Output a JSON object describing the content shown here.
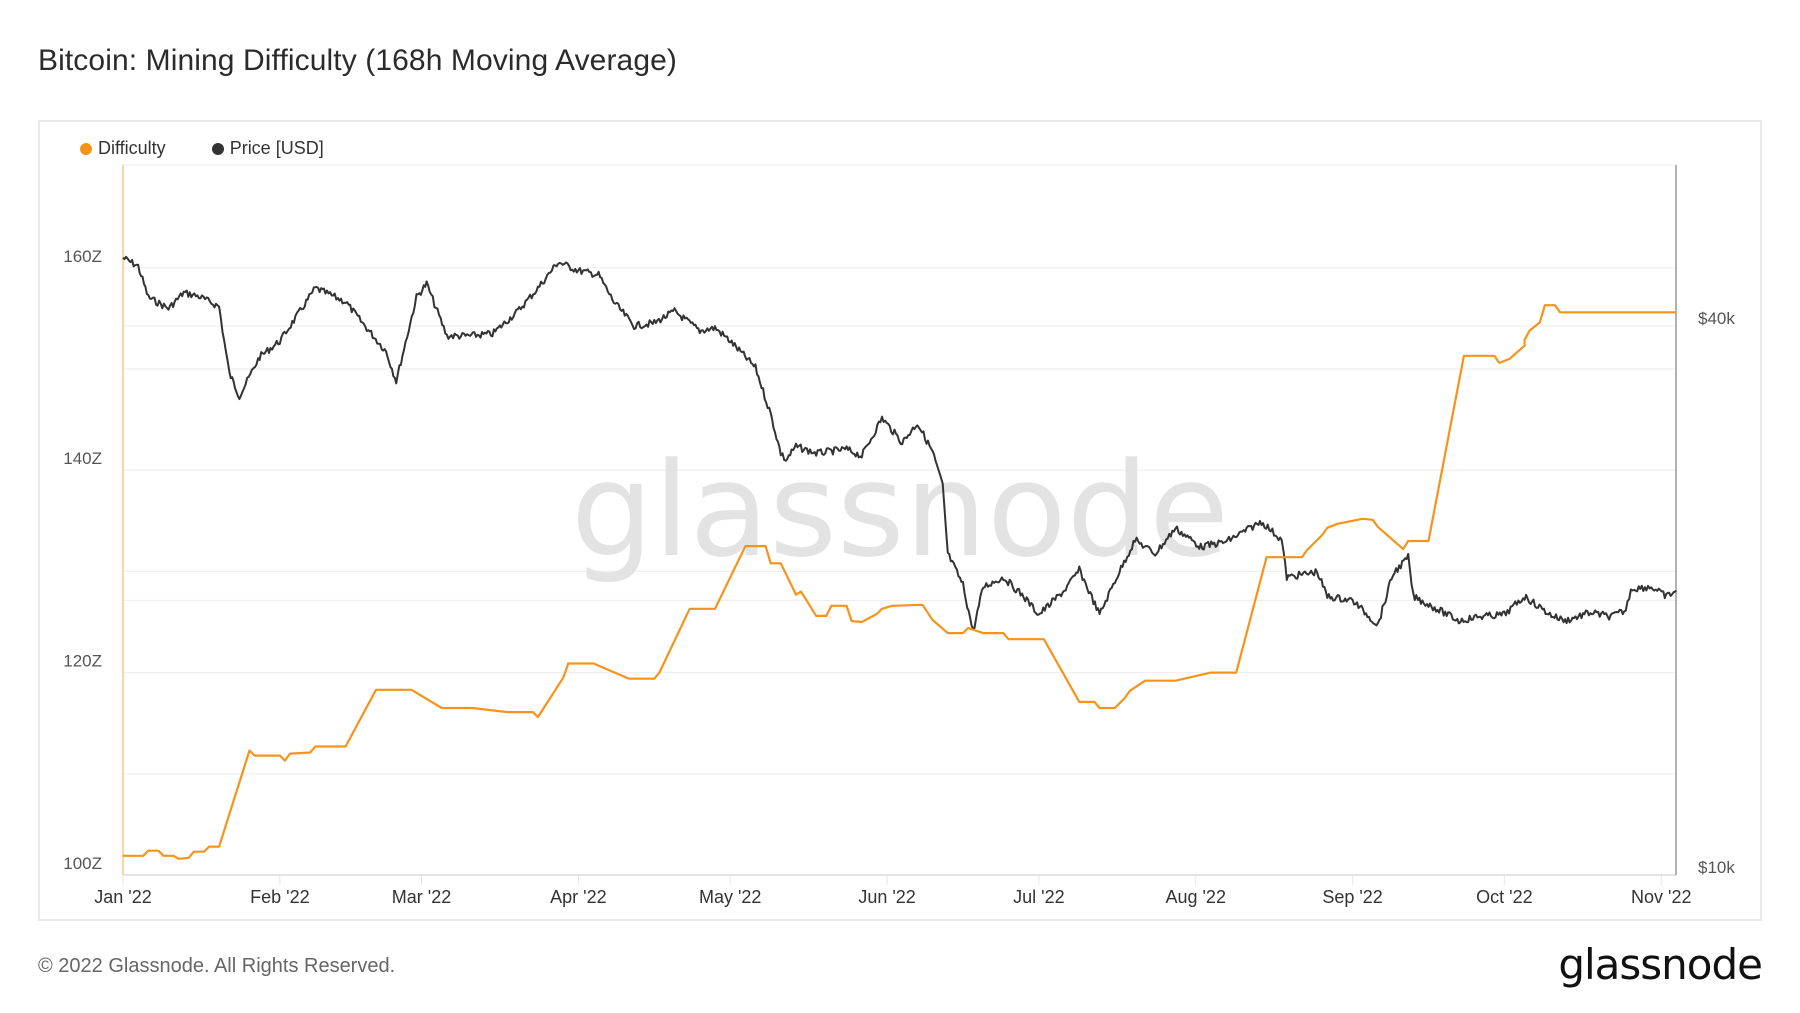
{
  "header": {
    "title": "Bitcoin: Mining Difficulty (168h Moving Average)"
  },
  "legend": [
    {
      "label": "Difficulty",
      "color": "#f7931a"
    },
    {
      "label": "Price [USD]",
      "color": "#333333"
    }
  ],
  "watermark": "glassnode",
  "footer": {
    "copyright": "© 2022 Glassnode. All Rights Reserved.",
    "brand": "glassnode"
  },
  "chart_data": {
    "type": "line",
    "title": "Bitcoin: Mining Difficulty (168h Moving Average)",
    "xlabel": "",
    "ylabel_left": "Difficulty",
    "ylabel_right": "Price [USD]",
    "x_ticks": [
      "Jan '22",
      "Feb '22",
      "Mar '22",
      "Apr '22",
      "May '22",
      "Jun '22",
      "Jul '22",
      "Aug '22",
      "Sep '22",
      "Oct '22",
      "Nov '22"
    ],
    "y_left_ticks": [
      "100Z",
      "120Z",
      "140Z",
      "160Z"
    ],
    "y_left_range": [
      100,
      168
    ],
    "y_right_ticks": [
      "$10k",
      "$40k"
    ],
    "y_right_scale": "log",
    "y_right_range": [
      10000,
      52000
    ],
    "grid": true,
    "legend_position": "top-left",
    "series": [
      {
        "name": "Difficulty",
        "unit": "Z",
        "color": "#f7931a",
        "points": [
          [
            "2022-01-01",
            101.9
          ],
          [
            "2022-01-05",
            101.9
          ],
          [
            "2022-01-06",
            102.4
          ],
          [
            "2022-01-08",
            102.4
          ],
          [
            "2022-01-09",
            101.9
          ],
          [
            "2022-01-11",
            101.9
          ],
          [
            "2022-01-12",
            101.6
          ],
          [
            "2022-01-14",
            101.7
          ],
          [
            "2022-01-15",
            102.3
          ],
          [
            "2022-01-17",
            102.3
          ],
          [
            "2022-01-18",
            102.8
          ],
          [
            "2022-01-20",
            102.8
          ],
          [
            "2022-01-26",
            112.3
          ],
          [
            "2022-01-27",
            111.8
          ],
          [
            "2022-02-01",
            111.8
          ],
          [
            "2022-02-02",
            111.3
          ],
          [
            "2022-02-03",
            112.0
          ],
          [
            "2022-02-07",
            112.1
          ],
          [
            "2022-02-08",
            112.7
          ],
          [
            "2022-02-14",
            112.7
          ],
          [
            "2022-02-20",
            118.3
          ],
          [
            "2022-02-27",
            118.3
          ],
          [
            "2022-03-05",
            116.5
          ],
          [
            "2022-03-11",
            116.5
          ],
          [
            "2022-03-18",
            116.1
          ],
          [
            "2022-03-23",
            116.1
          ],
          [
            "2022-03-24",
            115.6
          ],
          [
            "2022-03-29",
            119.5
          ],
          [
            "2022-03-30",
            120.9
          ],
          [
            "2022-04-04",
            120.9
          ],
          [
            "2022-04-11",
            119.4
          ],
          [
            "2022-04-16",
            119.4
          ],
          [
            "2022-04-17",
            120.0
          ],
          [
            "2022-04-23",
            126.3
          ],
          [
            "2022-04-28",
            126.3
          ],
          [
            "2022-05-04",
            132.5
          ],
          [
            "2022-05-08",
            132.5
          ],
          [
            "2022-05-09",
            130.8
          ],
          [
            "2022-05-11",
            130.8
          ],
          [
            "2022-05-14",
            127.7
          ],
          [
            "2022-05-15",
            128.0
          ],
          [
            "2022-05-18",
            125.6
          ],
          [
            "2022-05-20",
            125.6
          ],
          [
            "2022-05-21",
            126.6
          ],
          [
            "2022-05-24",
            126.6
          ],
          [
            "2022-05-25",
            125.1
          ],
          [
            "2022-05-27",
            125.0
          ],
          [
            "2022-05-30",
            125.8
          ],
          [
            "2022-05-31",
            126.3
          ],
          [
            "2022-06-02",
            126.6
          ],
          [
            "2022-06-08",
            126.7
          ],
          [
            "2022-06-10",
            125.2
          ],
          [
            "2022-06-13",
            123.9
          ],
          [
            "2022-06-16",
            123.9
          ],
          [
            "2022-06-17",
            124.4
          ],
          [
            "2022-06-20",
            123.9
          ],
          [
            "2022-06-24",
            123.9
          ],
          [
            "2022-06-25",
            123.3
          ],
          [
            "2022-07-02",
            123.3
          ],
          [
            "2022-07-09",
            117.1
          ],
          [
            "2022-07-12",
            117.1
          ],
          [
            "2022-07-13",
            116.5
          ],
          [
            "2022-07-16",
            116.5
          ],
          [
            "2022-07-18",
            117.5
          ],
          [
            "2022-07-19",
            118.2
          ],
          [
            "2022-07-22",
            119.2
          ],
          [
            "2022-07-28",
            119.2
          ],
          [
            "2022-08-04",
            120.0
          ],
          [
            "2022-08-09",
            120.0
          ],
          [
            "2022-08-15",
            131.4
          ],
          [
            "2022-08-22",
            131.4
          ],
          [
            "2022-08-23",
            132.1
          ],
          [
            "2022-08-26",
            133.6
          ],
          [
            "2022-08-27",
            134.3
          ],
          [
            "2022-08-29",
            134.7
          ],
          [
            "2022-09-03",
            135.2
          ],
          [
            "2022-09-05",
            135.1
          ],
          [
            "2022-09-06",
            134.4
          ],
          [
            "2022-09-11",
            132.2
          ],
          [
            "2022-09-12",
            133.0
          ],
          [
            "2022-09-16",
            133.0
          ],
          [
            "2022-09-23",
            151.3
          ],
          [
            "2022-09-29",
            151.3
          ],
          [
            "2022-09-30",
            150.6
          ],
          [
            "2022-10-02",
            151.0
          ],
          [
            "2022-10-05",
            152.3
          ],
          [
            "2022-10-05",
            152.9
          ],
          [
            "2022-10-06",
            153.8
          ],
          [
            "2022-10-08",
            154.6
          ],
          [
            "2022-10-09",
            156.3
          ],
          [
            "2022-10-11",
            156.3
          ],
          [
            "2022-10-12",
            155.6
          ],
          [
            "2022-11-04",
            155.6
          ]
        ]
      },
      {
        "name": "Price [USD]",
        "color": "#333333",
        "points": [
          [
            "2022-01-01",
            47500
          ],
          [
            "2022-01-04",
            46500
          ],
          [
            "2022-01-06",
            43000
          ],
          [
            "2022-01-10",
            41800
          ],
          [
            "2022-01-13",
            43500
          ],
          [
            "2022-01-16",
            43100
          ],
          [
            "2022-01-20",
            42000
          ],
          [
            "2022-01-21",
            38500
          ],
          [
            "2022-01-22",
            35500
          ],
          [
            "2022-01-24",
            33500
          ],
          [
            "2022-01-28",
            37000
          ],
          [
            "2022-02-01",
            38500
          ],
          [
            "2022-02-05",
            41500
          ],
          [
            "2022-02-08",
            44000
          ],
          [
            "2022-02-10",
            43500
          ],
          [
            "2022-02-14",
            42500
          ],
          [
            "2022-02-17",
            40500
          ],
          [
            "2022-02-22",
            37500
          ],
          [
            "2022-02-24",
            34800
          ],
          [
            "2022-02-28",
            43000
          ],
          [
            "2022-03-02",
            44500
          ],
          [
            "2022-03-06",
            39000
          ],
          [
            "2022-03-10",
            39000
          ],
          [
            "2022-03-15",
            39200
          ],
          [
            "2022-03-20",
            41500
          ],
          [
            "2022-03-24",
            44000
          ],
          [
            "2022-03-28",
            47000
          ],
          [
            "2022-04-01",
            46000
          ],
          [
            "2022-04-05",
            45500
          ],
          [
            "2022-04-08",
            42500
          ],
          [
            "2022-04-12",
            40000
          ],
          [
            "2022-04-16",
            40300
          ],
          [
            "2022-04-20",
            41500
          ],
          [
            "2022-04-25",
            39500
          ],
          [
            "2022-04-28",
            39800
          ],
          [
            "2022-05-01",
            38500
          ],
          [
            "2022-05-06",
            36000
          ],
          [
            "2022-05-09",
            32000
          ],
          [
            "2022-05-11",
            29000
          ],
          [
            "2022-05-12",
            28500
          ],
          [
            "2022-05-14",
            29500
          ],
          [
            "2022-05-18",
            29000
          ],
          [
            "2022-05-24",
            29300
          ],
          [
            "2022-05-27",
            28800
          ],
          [
            "2022-05-31",
            31700
          ],
          [
            "2022-06-04",
            29800
          ],
          [
            "2022-06-07",
            31300
          ],
          [
            "2022-06-10",
            29100
          ],
          [
            "2022-06-12",
            26700
          ],
          [
            "2022-06-13",
            22500
          ],
          [
            "2022-06-16",
            20800
          ],
          [
            "2022-06-18",
            18500
          ],
          [
            "2022-06-20",
            20700
          ],
          [
            "2022-06-24",
            21200
          ],
          [
            "2022-06-28",
            20200
          ],
          [
            "2022-07-01",
            19300
          ],
          [
            "2022-07-06",
            20500
          ],
          [
            "2022-07-09",
            21600
          ],
          [
            "2022-07-13",
            19300
          ],
          [
            "2022-07-16",
            21000
          ],
          [
            "2022-07-20",
            23300
          ],
          [
            "2022-07-24",
            22500
          ],
          [
            "2022-07-28",
            24000
          ],
          [
            "2022-08-02",
            22900
          ],
          [
            "2022-08-07",
            23200
          ],
          [
            "2022-08-14",
            24400
          ],
          [
            "2022-08-18",
            23300
          ],
          [
            "2022-08-19",
            21200
          ],
          [
            "2022-08-25",
            21500
          ],
          [
            "2022-08-27",
            20200
          ],
          [
            "2022-09-01",
            20000
          ],
          [
            "2022-09-06",
            18800
          ],
          [
            "2022-09-09",
            21400
          ],
          [
            "2022-09-12",
            22300
          ],
          [
            "2022-09-13",
            20200
          ],
          [
            "2022-09-19",
            19400
          ],
          [
            "2022-09-22",
            19000
          ],
          [
            "2022-09-26",
            19200
          ],
          [
            "2022-10-01",
            19300
          ],
          [
            "2022-10-05",
            20200
          ],
          [
            "2022-10-10",
            19300
          ],
          [
            "2022-10-13",
            19000
          ],
          [
            "2022-10-18",
            19400
          ],
          [
            "2022-10-22",
            19200
          ],
          [
            "2022-10-25",
            19500
          ],
          [
            "2022-10-26",
            20600
          ],
          [
            "2022-10-30",
            20700
          ],
          [
            "2022-11-02",
            20200
          ],
          [
            "2022-11-04",
            20500
          ]
        ]
      }
    ]
  }
}
